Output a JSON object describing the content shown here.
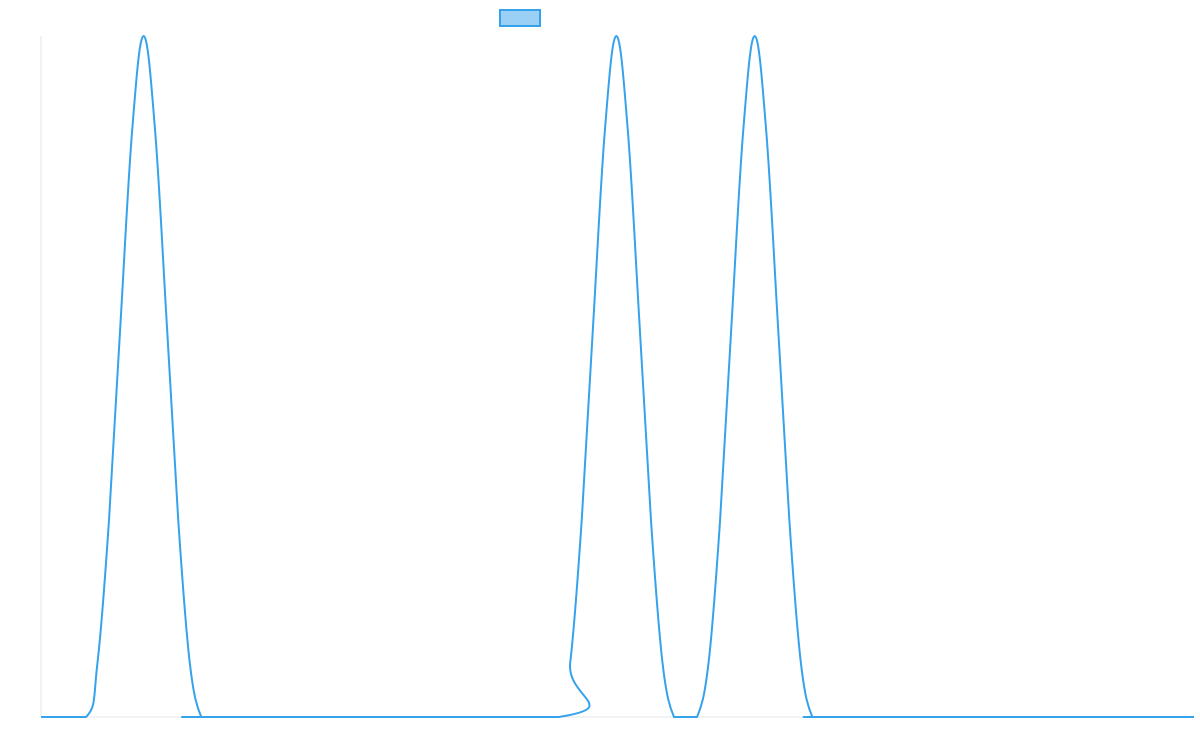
{
  "chart_data": {
    "type": "line",
    "title": "",
    "xlabel": "",
    "ylabel": "",
    "grid": false,
    "legend": {
      "placement": "top-center",
      "entries": [
        {
          "label": "",
          "color": "#36a2eb",
          "fill": "#9ad0f5"
        }
      ]
    },
    "xlim": [
      0,
      100
    ],
    "ylim": [
      0,
      1
    ],
    "series": [
      {
        "color": "#36a2eb",
        "x": [
          0,
          3.9,
          4.9,
          5.9,
          6.9,
          7.9,
          8.9,
          9.9,
          10.9,
          11.9,
          12.9,
          13.9,
          14.9,
          44.9,
          45.9,
          46.9,
          47.9,
          48.9,
          49.9,
          50.9,
          51.9,
          52.9,
          53.9,
          54.9,
          55.9,
          56.9,
          57.9,
          58.9,
          59.9,
          60.9,
          61.9,
          62.9,
          63.9,
          64.9,
          65.9,
          66.9,
          67.9,
          68.9,
          100
        ],
        "y": [
          0,
          0,
          0.08,
          0.29,
          0.58,
          0.86,
          1.0,
          0.86,
          0.58,
          0.29,
          0.08,
          0,
          0,
          0,
          0.08,
          0.29,
          0.58,
          0.86,
          1.0,
          0.86,
          0.58,
          0.29,
          0.08,
          0,
          0,
          0,
          0.08,
          0.29,
          0.58,
          0.86,
          1.0,
          0.86,
          0.58,
          0.29,
          0.08,
          0,
          0,
          0,
          0
        ]
      }
    ]
  }
}
